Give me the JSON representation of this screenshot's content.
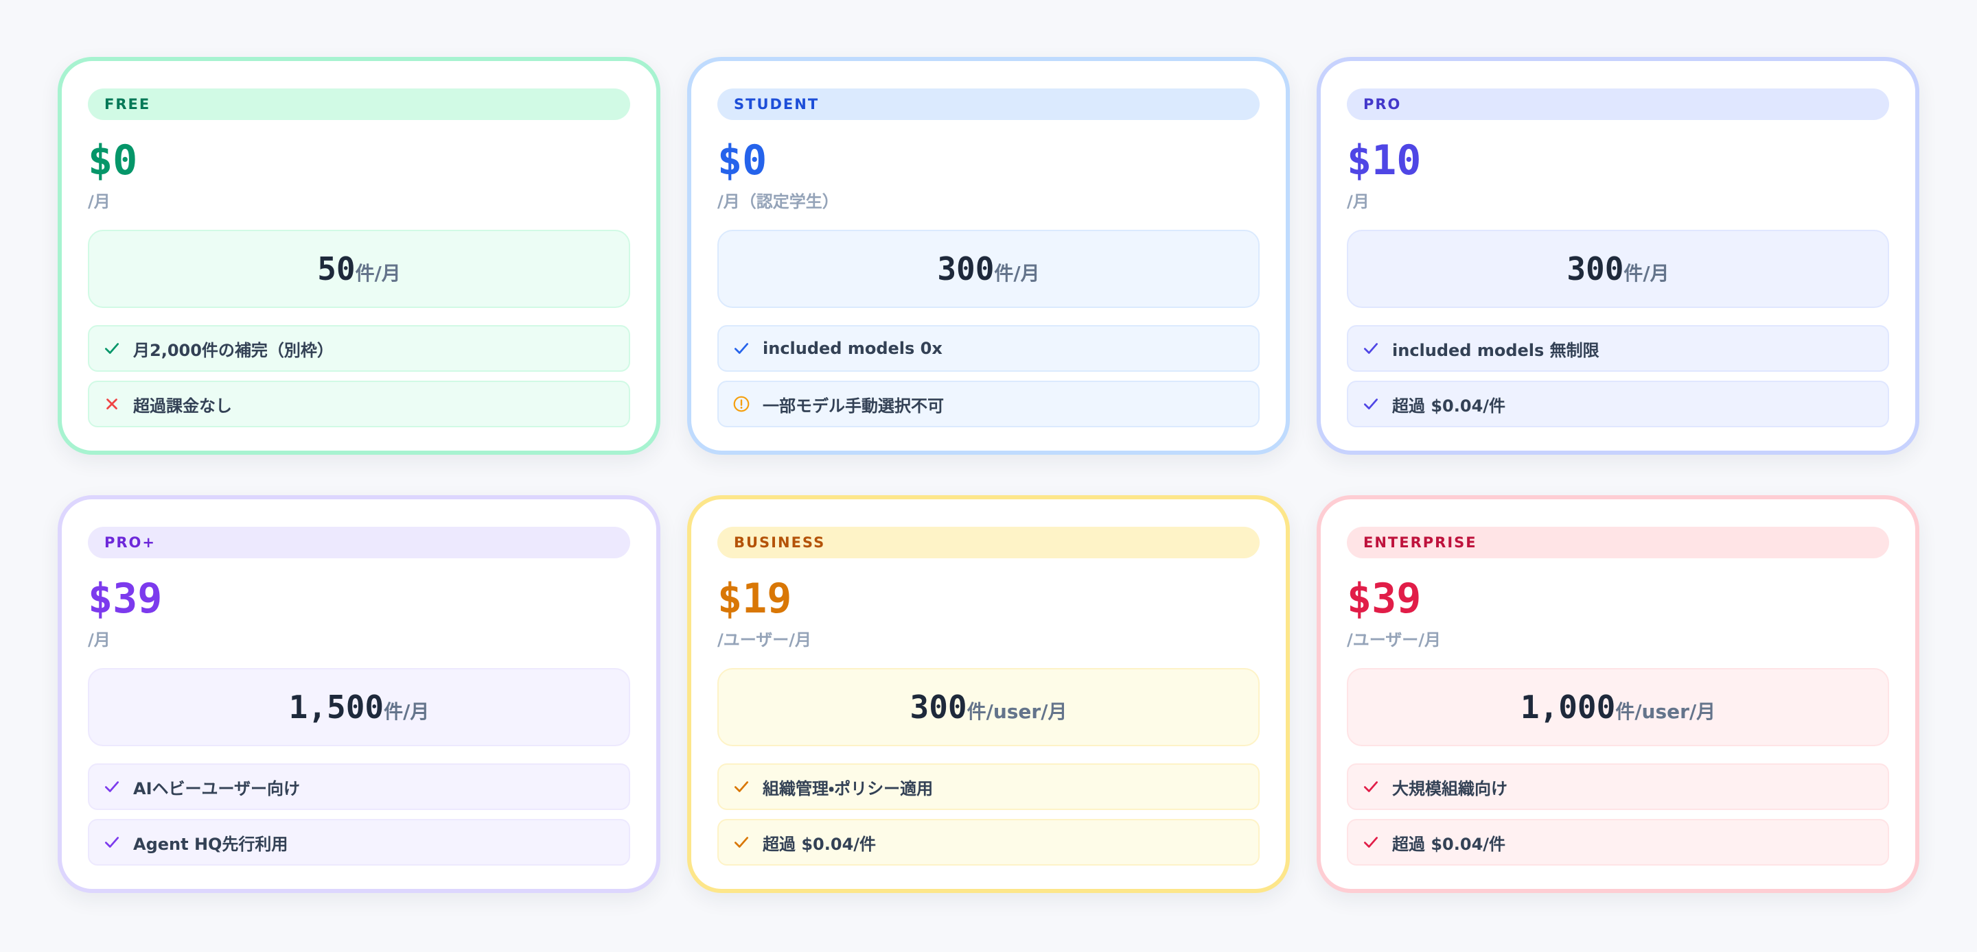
{
  "plans": [
    {
      "tier": "FREE",
      "price": "$0",
      "period": "/月",
      "quota": "50",
      "quota_unit": "件/月",
      "features": [
        "月2,000件の補完（別枠）",
        "超過課金なし"
      ]
    },
    {
      "tier": "STUDENT",
      "price": "$0",
      "period": "/月（認定学生）",
      "quota": "300",
      "quota_unit": "件/月",
      "features": [
        "included models 0x",
        "一部モデル手動選択不可"
      ]
    },
    {
      "tier": "PRO",
      "price": "$10",
      "period": "/月",
      "quota": "300",
      "quota_unit": "件/月",
      "features": [
        "included models 無制限",
        "超過 $0.04/件"
      ]
    },
    {
      "tier": "PRO+",
      "price": "$39",
      "period": "/月",
      "quota": "1,500",
      "quota_unit": "件/月",
      "features": [
        "AIヘビーユーザー向け",
        "Agent HQ先行利用"
      ]
    },
    {
      "tier": "BUSINESS",
      "price": "$19",
      "period": "/ユーザー/月",
      "quota": "300",
      "quota_unit": "件/user/月",
      "features": [
        "組織管理・ポリシー適用",
        "超過 $0.04/件"
      ]
    },
    {
      "tier": "ENTERPRISE",
      "price": "$39",
      "period": "/ユーザー/月",
      "quota": "1,000",
      "quota_unit": "件/user/月",
      "features": [
        "大規模組織向け",
        "超過 $0.04/件"
      ]
    }
  ]
}
